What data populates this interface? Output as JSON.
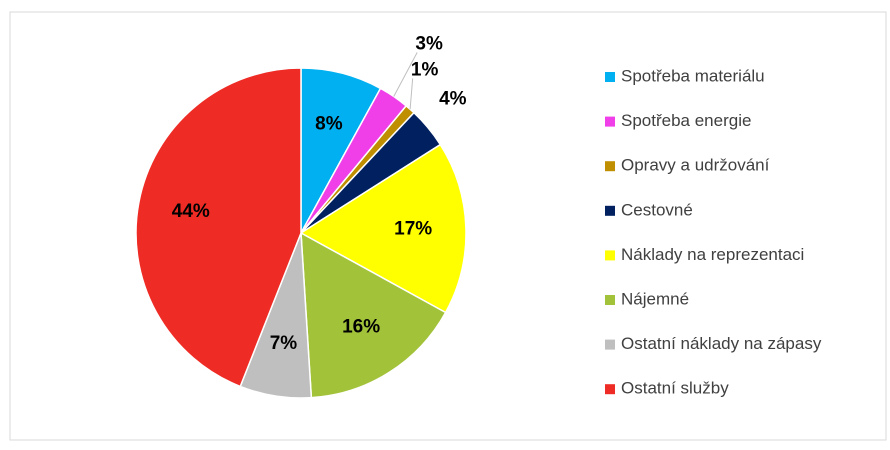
{
  "chart_data": {
    "type": "pie",
    "categories": [
      "Spotřeba materiálu",
      "Spotřeba energie",
      "Opravy a udržování",
      "Cestovné",
      "Náklady na reprezentaci",
      "Nájemné",
      "Ostatní náklady na zápasy",
      "Ostatní služby"
    ],
    "values": [
      8,
      3,
      1,
      4,
      17,
      16,
      7,
      44
    ],
    "value_labels": [
      "8%",
      "3%",
      "1%",
      "4%",
      "17%",
      "16%",
      "7%",
      "44%"
    ],
    "colors": [
      "#00b0f0",
      "#f03ee8",
      "#bf8f00",
      "#002060",
      "#ffff00",
      "#a2c23a",
      "#bfbfbf",
      "#ee2b24"
    ],
    "legend": "right"
  }
}
